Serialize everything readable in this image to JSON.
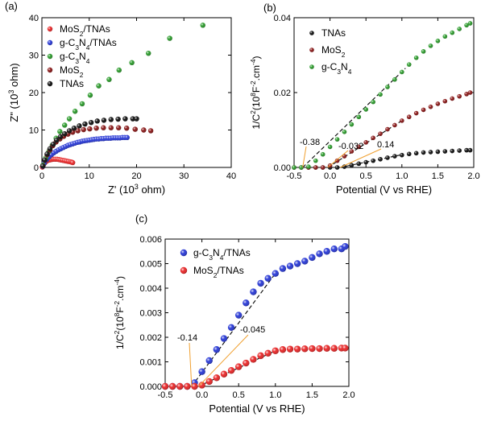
{
  "chart_data": [
    {
      "type": "scatter",
      "panel_label": "(a)",
      "xlabel": "Z' (10",
      "xlabel_sup": "3",
      "xlabel_end": " ohm)",
      "ylabel": "Z\" (10",
      "ylabel_sup": "3",
      "ylabel_end": " ohm)",
      "xlim": [
        0,
        40
      ],
      "ylim": [
        0,
        40
      ],
      "xticks": [
        0,
        10,
        20,
        30,
        40
      ],
      "yticks": [
        0,
        10,
        20,
        30,
        40
      ],
      "legend_position": "top-left",
      "series": [
        {
          "name": "MoS2/TNAs",
          "legend": [
            "MoS",
            "2",
            "/TNAs"
          ],
          "color": "#e8292a",
          "x": [
            0.1,
            0.2,
            0.4,
            0.6,
            0.8,
            1.0,
            1.3,
            1.6,
            2.0,
            2.4,
            2.8,
            3.2,
            3.6,
            4.0,
            4.4,
            4.8,
            5.2,
            5.6,
            6.0,
            6.3,
            6.5
          ],
          "y": [
            0.1,
            0.5,
            0.9,
            1.2,
            1.5,
            1.7,
            1.9,
            2.0,
            2.1,
            2.2,
            2.2,
            2.2,
            2.1,
            2.0,
            1.9,
            1.8,
            1.7,
            1.6,
            1.5,
            1.4,
            1.3
          ]
        },
        {
          "name": "g-C3N4/TNAs",
          "legend": [
            "g-C",
            "3",
            "N",
            "4",
            "/TNAs"
          ],
          "color": "#2b3bd6",
          "x": [
            0.2,
            0.5,
            1.0,
            1.5,
            2.0,
            2.5,
            3.0,
            3.5,
            4.0,
            4.5,
            5.0,
            5.5,
            6.0,
            6.5,
            7.0,
            7.5,
            8.0,
            8.5,
            9.0,
            9.5,
            10,
            10.5,
            11,
            11.5,
            12,
            12.5,
            13,
            13.5,
            14,
            14.5,
            15,
            15.5,
            16,
            16.5,
            17,
            17.5,
            18
          ],
          "y": [
            0.3,
            1.2,
            2.1,
            2.8,
            3.4,
            3.9,
            4.3,
            4.7,
            5.0,
            5.3,
            5.6,
            5.9,
            6.1,
            6.3,
            6.5,
            6.7,
            6.8,
            7.0,
            7.1,
            7.2,
            7.3,
            7.4,
            7.5,
            7.6,
            7.6,
            7.7,
            7.7,
            7.8,
            7.8,
            7.8,
            7.9,
            7.9,
            7.9,
            7.9,
            8.0,
            8.0,
            8.0
          ]
        },
        {
          "name": "g-C3N4",
          "legend": [
            "g-C",
            "3",
            "N",
            "4"
          ],
          "color": "#2e9c2e",
          "x": [
            0.2,
            0.8,
            1.5,
            2.2,
            3.0,
            3.8,
            4.8,
            5.8,
            7.0,
            8.5,
            10.2,
            12.0,
            14.2,
            16.3,
            19.0,
            22.5,
            27.0,
            34.0
          ],
          "y": [
            0.6,
            2.5,
            4.3,
            6.0,
            7.8,
            9.6,
            11.3,
            13.0,
            15.0,
            17.0,
            19.3,
            21.8,
            23.5,
            26.0,
            28.0,
            30.5,
            34.5,
            38.0
          ]
        },
        {
          "name": "MoS2",
          "legend": [
            "MoS",
            "2"
          ],
          "color": "#8b1a1a",
          "x": [
            0.2,
            0.6,
            1.1,
            1.7,
            2.3,
            3.0,
            3.8,
            4.6,
            5.5,
            6.5,
            7.6,
            8.8,
            10.1,
            11.5,
            13.0,
            14.6,
            16.2,
            17.9,
            19.7,
            21.5,
            23.0
          ],
          "y": [
            0.4,
            1.9,
            3.4,
            4.7,
            5.8,
            6.8,
            7.6,
            8.3,
            8.9,
            9.4,
            9.8,
            10.1,
            10.3,
            10.5,
            10.6,
            10.6,
            10.6,
            10.5,
            10.2,
            10.0,
            9.8
          ]
        },
        {
          "name": "TNAs",
          "legend": [
            "TNAs"
          ],
          "color": "#111111",
          "x": [
            0.2,
            0.6,
            1.1,
            1.7,
            2.4,
            3.1,
            3.9,
            4.8,
            5.8,
            6.8,
            7.9,
            9.1,
            10.4,
            11.7,
            13.1,
            14.6,
            16.1,
            17.6,
            19.2,
            20.0
          ],
          "y": [
            0.4,
            2.0,
            3.6,
            5.0,
            6.2,
            7.3,
            8.2,
            9.0,
            9.8,
            10.5,
            11.1,
            11.6,
            12.0,
            12.4,
            12.6,
            12.8,
            12.9,
            13.0,
            13.0,
            13.0
          ]
        }
      ]
    },
    {
      "type": "scatter",
      "panel_label": "(b)",
      "xlabel": "Potential (V vs RHE)",
      "ylabel": "1/C",
      "ylabel_sup1": "2",
      "ylabel_mid": "(10",
      "ylabel_sup2": "8",
      "ylabel_mid2": "F",
      "ylabel_sup3": "-2",
      "ylabel_end": ".cm",
      "ylabel_sup4": "-4",
      "ylabel_close": ")",
      "xlim": [
        -0.5,
        2.0
      ],
      "ylim": [
        0,
        0.04
      ],
      "xticks": [
        -0.5,
        0.0,
        0.5,
        1.0,
        1.5,
        2.0
      ],
      "ytick_labels": [
        "0.00",
        "0.02",
        "0.04"
      ],
      "yticks": [
        0,
        0.02,
        0.04
      ],
      "legend_position": "top-left",
      "annotations": [
        {
          "text": "-0.38",
          "color": "#2e9c2e",
          "x": -0.38
        },
        {
          "text": "-0.032",
          "color": "#8b1a1a",
          "x": -0.032
        },
        {
          "text": "0.14",
          "color": "#000000",
          "x": 0.14
        }
      ],
      "series": [
        {
          "name": "TNAs",
          "legend": [
            "TNAs"
          ],
          "color": "#111111",
          "x": [
            -0.5,
            -0.4,
            -0.3,
            -0.2,
            -0.1,
            0.0,
            0.1,
            0.2,
            0.3,
            0.4,
            0.5,
            0.6,
            0.7,
            0.8,
            0.9,
            1.0,
            1.1,
            1.2,
            1.3,
            1.4,
            1.5,
            1.6,
            1.7,
            1.8,
            1.9,
            1.95
          ],
          "y": [
            0,
            0,
            0,
            0,
            0,
            0,
            0,
            0.0002,
            0.0006,
            0.001,
            0.0014,
            0.0018,
            0.0022,
            0.0026,
            0.003,
            0.0033,
            0.0036,
            0.0038,
            0.004,
            0.0041,
            0.0042,
            0.0043,
            0.0044,
            0.0045,
            0.0046,
            0.0046
          ]
        },
        {
          "name": "MoS2",
          "legend": [
            "MoS",
            "2"
          ],
          "color": "#8b1a1a",
          "x": [
            -0.5,
            -0.4,
            -0.3,
            -0.2,
            -0.1,
            0.0,
            0.1,
            0.2,
            0.3,
            0.4,
            0.5,
            0.6,
            0.7,
            0.8,
            0.9,
            1.0,
            1.1,
            1.2,
            1.3,
            1.4,
            1.5,
            1.6,
            1.7,
            1.8,
            1.9,
            1.95
          ],
          "y": [
            0,
            0,
            0,
            0,
            0,
            0.0005,
            0.0018,
            0.003,
            0.0043,
            0.0055,
            0.0067,
            0.0079,
            0.009,
            0.0102,
            0.0113,
            0.0125,
            0.0135,
            0.0145,
            0.0154,
            0.0162,
            0.017,
            0.0177,
            0.0184,
            0.019,
            0.0196,
            0.02
          ]
        },
        {
          "name": "g-C3N4",
          "legend": [
            "g-C",
            "3",
            "N",
            "4"
          ],
          "color": "#2e9c2e",
          "x": [
            -0.5,
            -0.4,
            -0.3,
            -0.2,
            -0.1,
            0.0,
            0.1,
            0.2,
            0.3,
            0.4,
            0.5,
            0.6,
            0.7,
            0.8,
            0.9,
            1.0,
            1.1,
            1.2,
            1.3,
            1.4,
            1.5,
            1.6,
            1.7,
            1.8,
            1.9,
            1.95
          ],
          "y": [
            0,
            0,
            0.0002,
            0.0018,
            0.0035,
            0.0055,
            0.0075,
            0.0095,
            0.0115,
            0.0135,
            0.0155,
            0.0175,
            0.0195,
            0.0215,
            0.0235,
            0.0255,
            0.0275,
            0.0293,
            0.031,
            0.0325,
            0.0338,
            0.035,
            0.036,
            0.037,
            0.038,
            0.0385
          ]
        }
      ],
      "fit_lines": [
        {
          "color": "#000000",
          "x": [
            0.14,
            1.0
          ],
          "y": [
            0,
            0.0034
          ]
        },
        {
          "color": "#000000",
          "x": [
            -0.032,
            1.0
          ],
          "y": [
            0,
            0.0125
          ]
        },
        {
          "color": "#000000",
          "x": [
            -0.38,
            1.05
          ],
          "y": [
            0,
            0.0265
          ]
        }
      ]
    },
    {
      "type": "scatter",
      "panel_label": "(c)",
      "xlabel": "Potential (V vs RHE)",
      "ylabel": "1/C",
      "ylabel_sup1": "2",
      "ylabel_mid": "(10",
      "ylabel_sup2": "8",
      "ylabel_mid2": "F",
      "ylabel_sup3": "-2",
      "ylabel_end": ".cm",
      "ylabel_sup4": "-4",
      "ylabel_close": ")",
      "xlim": [
        -0.5,
        2.0
      ],
      "ylim": [
        0,
        0.006
      ],
      "xticks": [
        -0.5,
        0.0,
        0.5,
        1.0,
        1.5,
        2.0
      ],
      "yticks": [
        0,
        0.001,
        0.002,
        0.003,
        0.004,
        0.005,
        0.006
      ],
      "ytick_labels": [
        "0.000",
        "0.001",
        "0.002",
        "0.003",
        "0.004",
        "0.005",
        "0.006"
      ],
      "legend_position": "top-left",
      "annotations": [
        {
          "text": "-0.14",
          "color": "#2b3bd6",
          "x": -0.14
        },
        {
          "text": "-0.045",
          "color": "#e8292a",
          "x": -0.045
        }
      ],
      "series": [
        {
          "name": "g-C3N4/TNAs",
          "legend": [
            "g-C",
            "3",
            "N",
            "4",
            "/TNAs"
          ],
          "color": "#2b3bd6",
          "x": [
            -0.5,
            -0.4,
            -0.3,
            -0.2,
            -0.1,
            0.0,
            0.1,
            0.2,
            0.3,
            0.4,
            0.5,
            0.6,
            0.7,
            0.8,
            0.9,
            1.0,
            1.1,
            1.2,
            1.3,
            1.4,
            1.5,
            1.6,
            1.7,
            1.8,
            1.9,
            1.95
          ],
          "y": [
            0,
            0,
            0,
            0,
            0.00015,
            0.0006,
            0.00105,
            0.0015,
            0.00195,
            0.0024,
            0.0029,
            0.0034,
            0.00385,
            0.0042,
            0.0044,
            0.0046,
            0.0048,
            0.0049,
            0.005,
            0.0051,
            0.00525,
            0.0054,
            0.0055,
            0.0056,
            0.0056,
            0.0057
          ]
        },
        {
          "name": "MoS2/TNAs",
          "legend": [
            "MoS",
            "2",
            "/TNAs"
          ],
          "color": "#e8292a",
          "x": [
            -0.5,
            -0.4,
            -0.3,
            -0.2,
            -0.1,
            0.0,
            0.1,
            0.2,
            0.3,
            0.4,
            0.5,
            0.6,
            0.7,
            0.8,
            0.9,
            1.0,
            1.1,
            1.2,
            1.3,
            1.4,
            1.5,
            1.6,
            1.7,
            1.8,
            1.9,
            1.95
          ],
          "y": [
            0,
            0,
            0,
            0,
            0,
            5e-05,
            0.0002,
            0.00035,
            0.0005,
            0.00065,
            0.0008,
            0.00095,
            0.0011,
            0.00125,
            0.00135,
            0.00145,
            0.0015,
            0.00152,
            0.00152,
            0.00153,
            0.00154,
            0.00154,
            0.00155,
            0.00155,
            0.00156,
            0.00156
          ]
        }
      ],
      "fit_lines": [
        {
          "color": "#000000",
          "x": [
            -0.14,
            1.0
          ],
          "y": [
            0,
            0.0046
          ]
        },
        {
          "color": "#000000",
          "x": [
            -0.045,
            1.0
          ],
          "y": [
            0,
            0.00145
          ]
        }
      ]
    }
  ]
}
